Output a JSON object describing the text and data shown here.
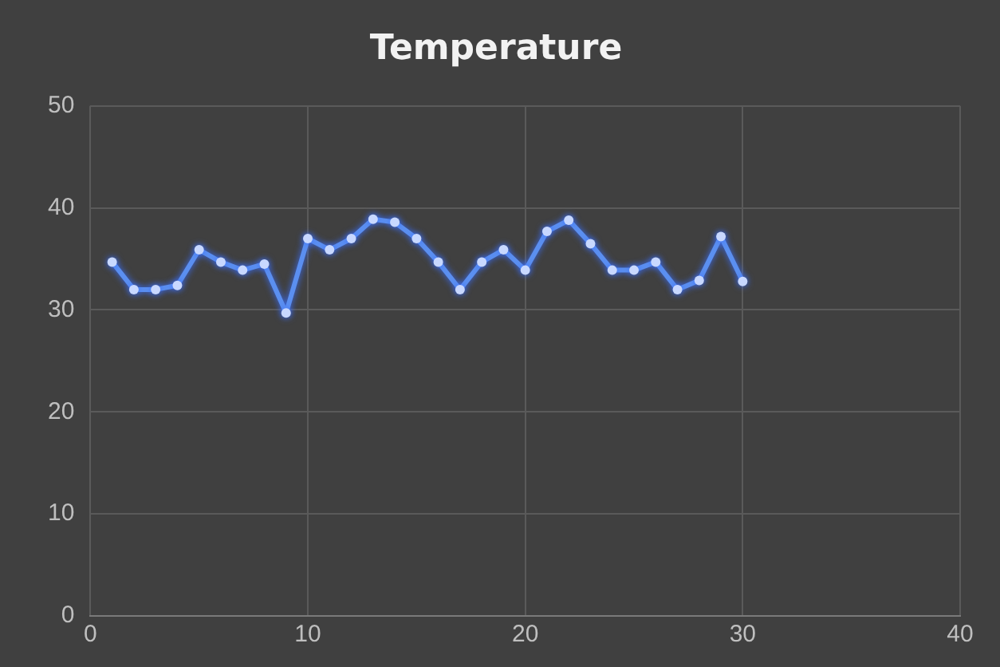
{
  "chart_data": {
    "type": "line",
    "title": "Temperature",
    "x": [
      1,
      2,
      3,
      4,
      5,
      6,
      7,
      8,
      9,
      10,
      11,
      12,
      13,
      14,
      15,
      16,
      17,
      18,
      19,
      20,
      21,
      22,
      23,
      24,
      25,
      26,
      27,
      28,
      29,
      30
    ],
    "series": [
      {
        "color": "#5b8ff0",
        "values": [
          34.7,
          32.0,
          32.0,
          32.4,
          35.9,
          34.7,
          33.9,
          34.5,
          29.7,
          37.0,
          35.9,
          37.0,
          38.9,
          38.6,
          37.0,
          34.7,
          32.0,
          34.7,
          35.9,
          33.9,
          37.7,
          38.8,
          36.5,
          33.9,
          33.9,
          34.7,
          32.0,
          32.9,
          37.2,
          32.8
        ]
      }
    ],
    "xlim": [
      0,
      40
    ],
    "xticks": [
      0,
      10,
      20,
      30,
      40
    ],
    "ylim": [
      0,
      50
    ],
    "yticks": [
      0,
      10,
      20,
      30,
      40,
      50
    ],
    "grid": true,
    "legend": false,
    "marker": "circle",
    "line_style": "solid"
  }
}
